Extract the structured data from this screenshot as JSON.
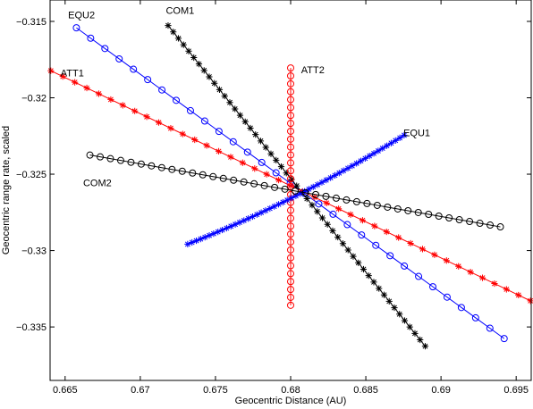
{
  "chart_data": {
    "type": "scatter",
    "title": "",
    "xlabel": "Geocentric Distance (AU)",
    "ylabel": "Geocentric range rate, scaled",
    "xlim": [
      0.664,
      0.696
    ],
    "ylim": [
      -0.3385,
      -0.3136
    ],
    "xticks": [
      0.665,
      0.67,
      0.675,
      0.68,
      0.685,
      0.69,
      0.695
    ],
    "xtick_labels": [
      "0.665",
      "0.67",
      "0.675",
      "0.68",
      "0.685",
      "0.69",
      "0.695"
    ],
    "yticks": [
      -0.315,
      -0.32,
      -0.325,
      -0.33,
      -0.335
    ],
    "ytick_labels": [
      "−0.315",
      "−0.32",
      "−0.325",
      "−0.33",
      "−0.335"
    ],
    "grid": false,
    "legend": "none",
    "series": [
      {
        "name": "EQU2",
        "color": "#0000ff",
        "marker": "circle",
        "line": true,
        "n": 31,
        "x_start": 0.66575,
        "x_end": 0.6942,
        "y_start": -0.31542,
        "y_end": -0.33576
      },
      {
        "name": "COM1",
        "color": "#000000",
        "marker": "star",
        "line": true,
        "n": 51,
        "x_start": 0.67185,
        "x_end": 0.68895,
        "y_start": -0.31527,
        "y_end": -0.33626
      },
      {
        "name": "ATT1",
        "color": "#ff0000",
        "marker": "star",
        "line": true,
        "n": 41,
        "x_start": 0.66405,
        "x_end": 0.69595,
        "y_start": -0.31823,
        "y_end": -0.33329
      },
      {
        "name": "ATT2",
        "color": "#ff0000",
        "marker": "circle",
        "line": true,
        "n": 31,
        "x_start": 0.68,
        "x_end": 0.68,
        "y_start": -0.31805,
        "y_end": -0.33358
      },
      {
        "name": "EQU1",
        "color": "#0000ff",
        "marker": "star",
        "line": true,
        "n": 51,
        "x_start": 0.67315,
        "x_end": 0.68755,
        "y_start": -0.32958,
        "y_end": -0.32245,
        "curvature": -0.0004
      },
      {
        "name": "COM2",
        "color": "#000000",
        "marker": "circle",
        "line": true,
        "n": 41,
        "x_start": 0.66665,
        "x_end": 0.69395,
        "y_start": -0.32375,
        "y_end": -0.32845
      }
    ],
    "annotations": [
      {
        "text": "EQU2",
        "x": 0.6652,
        "y": -0.3148
      },
      {
        "text": "COM1",
        "x": 0.6717,
        "y": -0.3145
      },
      {
        "text": "ATT1",
        "x": 0.6647,
        "y": -0.3186
      },
      {
        "text": "ATT2",
        "x": 0.6807,
        "y": -0.3184
      },
      {
        "text": "EQU1",
        "x": 0.6875,
        "y": -0.3225
      },
      {
        "text": "COM2",
        "x": 0.6662,
        "y": -0.3258
      }
    ]
  }
}
